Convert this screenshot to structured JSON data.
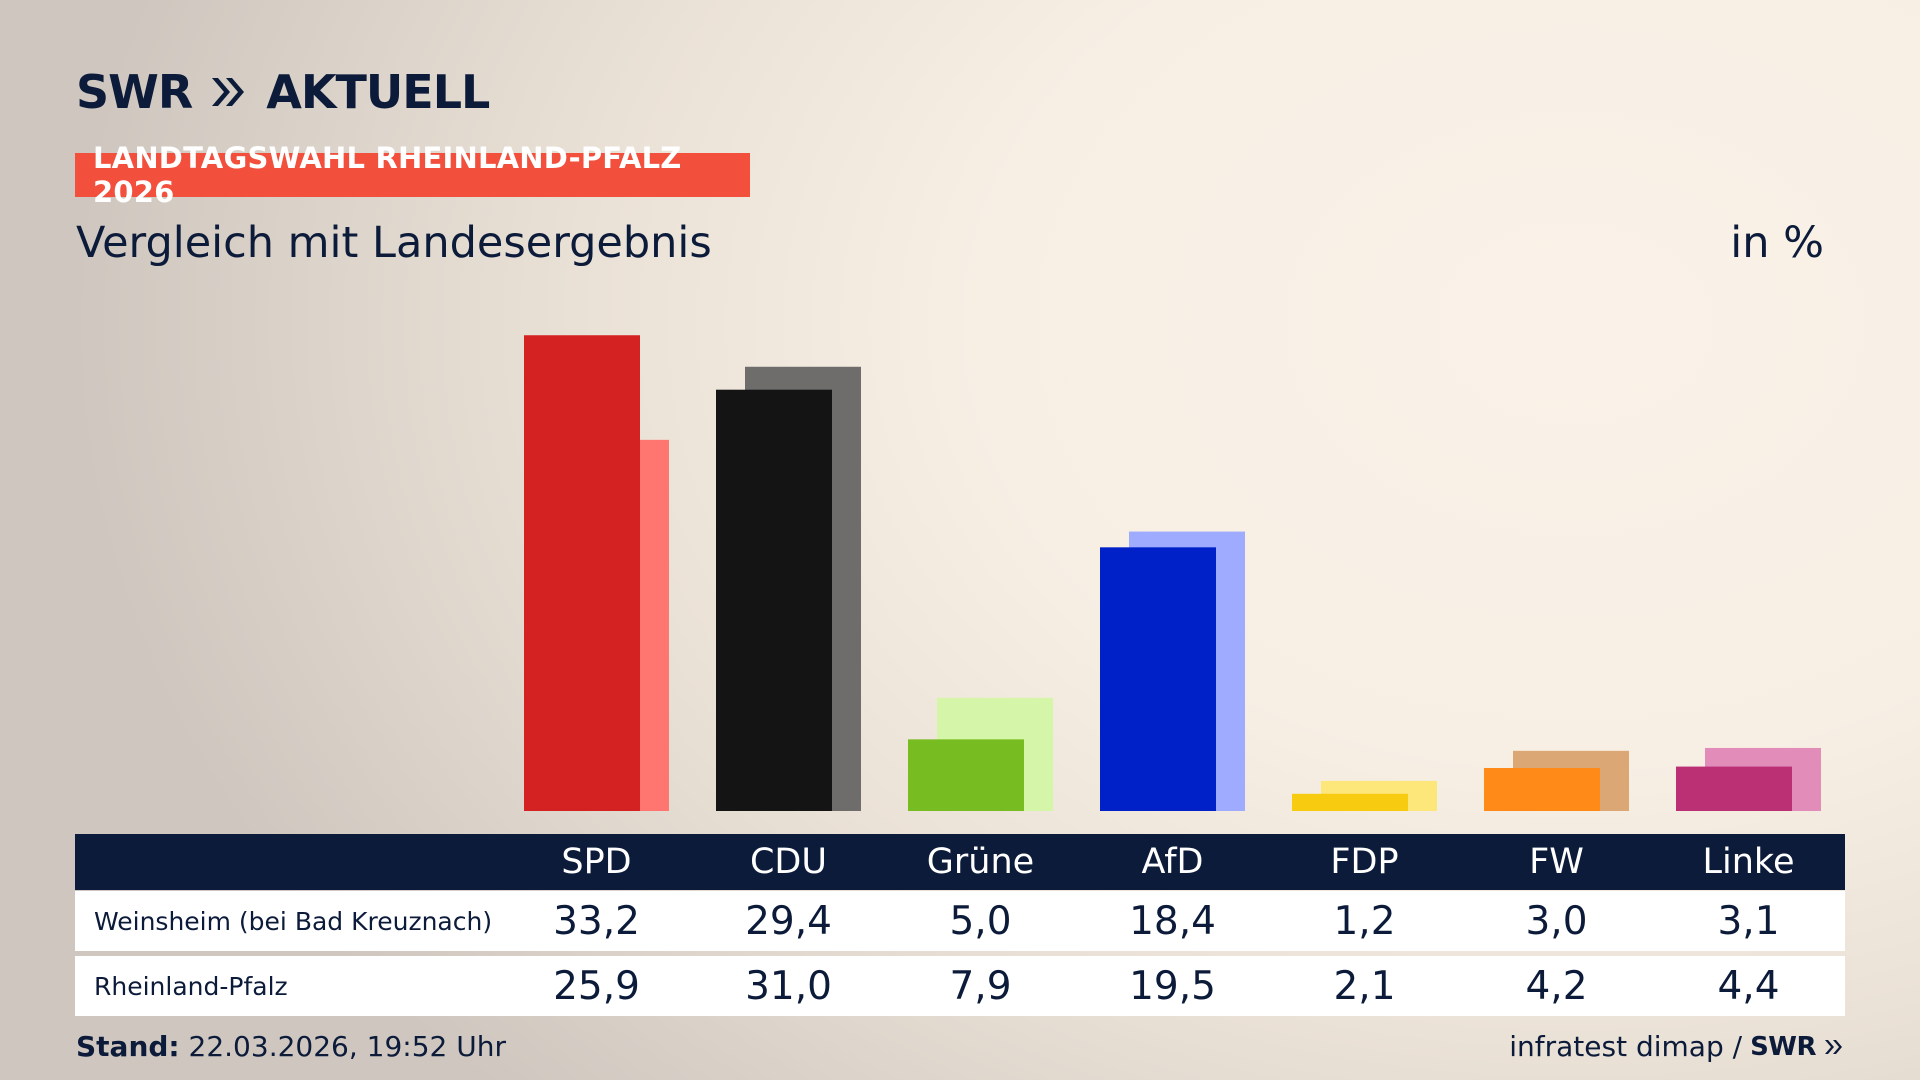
{
  "brand": {
    "name": "SWR",
    "section": "AKTUELL"
  },
  "election_tag": "LANDTAGSWAHL RHEINLAND-PFALZ 2026",
  "subtitle": "Vergleich mit Landesergebnis",
  "unit": "in %",
  "table": {
    "rows": [
      {
        "label": "Weinsheim (bei Bad Kreuznach)",
        "values": [
          "33,2",
          "29,4",
          "5,0",
          "18,4",
          "1,2",
          "3,0",
          "3,1"
        ]
      },
      {
        "label": "Rheinland-Pfalz",
        "values": [
          "25,9",
          "31,0",
          "7,9",
          "19,5",
          "2,1",
          "4,2",
          "4,4"
        ]
      }
    ]
  },
  "footer": {
    "stand_label": "Stand:",
    "stand_value": "22.03.2026, 19:52 Uhr",
    "source": "infratest dimap /",
    "source_logo": "SWR"
  },
  "chart_data": {
    "type": "bar",
    "categories": [
      "SPD",
      "CDU",
      "Grüne",
      "AfD",
      "FDP",
      "FW",
      "Linke"
    ],
    "series": [
      {
        "name": "Weinsheim (bei Bad Kreuznach)",
        "values": [
          33.2,
          29.4,
          5.0,
          18.4,
          1.2,
          3.0,
          3.1
        ]
      },
      {
        "name": "Rheinland-Pfalz",
        "values": [
          25.9,
          31.0,
          7.9,
          19.5,
          2.1,
          4.2,
          4.4
        ]
      }
    ],
    "colors": {
      "local": [
        "#d42121",
        "#141414",
        "#77bd22",
        "#0021c8",
        "#f7cc10",
        "#ff8a17",
        "#bb2f75"
      ],
      "state": [
        "#ff7570",
        "#6e6d6b",
        "#d5f5a8",
        "#9fabff",
        "#fde67a",
        "#dba774",
        "#e18cb9"
      ]
    },
    "title": "Vergleich mit Landesergebnis",
    "ylabel": "in %",
    "xlabel": "",
    "ylim": [
      0,
      35
    ],
    "grid": false
  }
}
